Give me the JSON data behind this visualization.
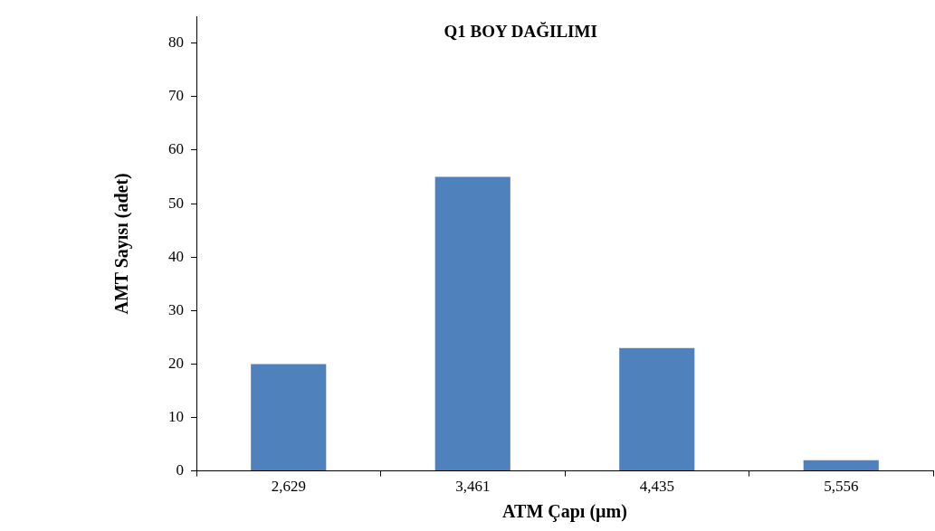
{
  "chart_data": {
    "type": "bar",
    "title": "Q1 BOY DAĞILIMI",
    "xlabel": "ATM Çapı (µm)",
    "ylabel": "AMT Sayısı (adet)",
    "categories": [
      "2,629",
      "3,461",
      "4,435",
      "5,556"
    ],
    "values": [
      20,
      55,
      23,
      2
    ],
    "color": "#4f81bd",
    "ylim": [
      0,
      85
    ],
    "yticks": [
      0,
      10,
      20,
      30,
      40,
      50,
      60,
      70,
      80
    ],
    "grid": false,
    "legend": false
  }
}
